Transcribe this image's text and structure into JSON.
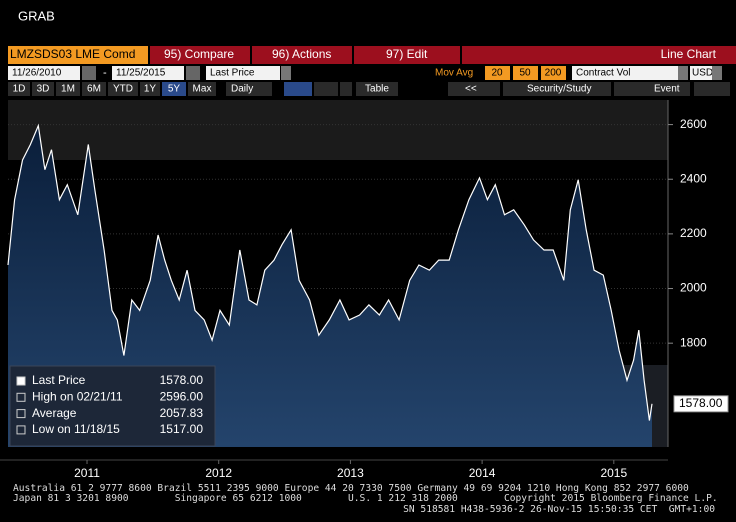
{
  "window_title": "GRAB",
  "toolbar": {
    "ticker": "LMZSDS03 LME Comd",
    "buttons": [
      "95) Compare",
      "96) Actions",
      "97) Edit"
    ],
    "chart_type_label": "Line Chart"
  },
  "settings": {
    "start_date": "11/26/2010",
    "end_date": "11/25/2015",
    "field": "Last Price",
    "mov_avg_label": "Mov Avg",
    "mov_avg": [
      20,
      50,
      200
    ],
    "lower_panel": "Contract Vol",
    "currency": "USD"
  },
  "periods": [
    "1D",
    "3D",
    "1M",
    "6M",
    "YTD",
    "1Y",
    "5Y",
    "Max"
  ],
  "frequency": "Daily",
  "table_button": "Table",
  "back_button": "<<",
  "security_study": "Security/Study",
  "event": "Event",
  "footer": [
    "Australia 61 2 9777 8600 Brazil 5511 2395 9000 Europe 44 20 7330 7500 Germany 49 69 9204 1210 Hong Kong 852 2977 6000",
    "Japan 81 3 3201 8900        Singapore 65 6212 1000        U.S. 1 212 318 2000        Copyright 2015 Bloomberg Finance L.P.",
    "SN 518581 H438-5936-2 26-Nov-15 15:50:35 CET  GMT+1:00"
  ],
  "chart_data": {
    "type": "line",
    "x": [
      2010.9,
      2010.95,
      2011.01,
      2011.07,
      2011.13,
      2011.18,
      2011.23,
      2011.29,
      2011.35,
      2011.43,
      2011.51,
      2011.56,
      2011.63,
      2011.69,
      2011.73,
      2011.78,
      2011.84,
      2011.9,
      2011.98,
      2012.04,
      2012.09,
      2012.14,
      2012.2,
      2012.26,
      2012.32,
      2012.39,
      2012.45,
      2012.51,
      2012.58,
      2012.66,
      2012.73,
      2012.79,
      2012.85,
      2012.92,
      2012.98,
      2013.05,
      2013.11,
      2013.19,
      2013.26,
      2013.34,
      2013.42,
      2013.49,
      2013.57,
      2013.64,
      2013.72,
      2013.79,
      2013.87,
      2013.95,
      2014.02,
      2014.1,
      2014.17,
      2014.25,
      2014.32,
      2014.4,
      2014.48,
      2014.54,
      2014.6,
      2014.67,
      2014.74,
      2014.82,
      2014.89,
      2014.97,
      2015.04,
      2015.12,
      2015.17,
      2015.23,
      2015.29,
      2015.35,
      2015.42,
      2015.48,
      2015.54,
      2015.6,
      2015.65,
      2015.69,
      2015.73,
      2015.77,
      2015.79
    ],
    "series": [
      {
        "name": "Last Price",
        "color": "#ffffff",
        "values": [
          2086,
          2325,
          2470,
          2527,
          2596,
          2435,
          2508,
          2325,
          2380,
          2270,
          2527,
          2360,
          2141,
          1920,
          1885,
          1755,
          1958,
          1920,
          2030,
          2196,
          2104,
          2030,
          1958,
          2067,
          1920,
          1885,
          1811,
          1920,
          1866,
          2141,
          1958,
          1940,
          2067,
          2104,
          2160,
          2215,
          2030,
          1958,
          1829,
          1885,
          1958,
          1885,
          1903,
          1940,
          1903,
          1958,
          1885,
          2030,
          2086,
          2067,
          2104,
          2104,
          2215,
          2325,
          2405,
          2325,
          2380,
          2270,
          2288,
          2233,
          2178,
          2141,
          2141,
          2030,
          2288,
          2398,
          2215,
          2067,
          2049,
          1920,
          1774,
          1664,
          1738,
          1848,
          1664,
          1517,
          1578
        ]
      }
    ],
    "xlim": [
      2010.9,
      2015.79
    ],
    "xticks": [
      {
        "value": 2011.5,
        "label": "2011"
      },
      {
        "value": 2012.5,
        "label": "2012"
      },
      {
        "value": 2013.5,
        "label": "2013"
      },
      {
        "value": 2014.5,
        "label": "2014"
      },
      {
        "value": 2015.5,
        "label": "2015"
      }
    ],
    "ylim": [
      1420,
      2690
    ],
    "yticks": [
      1800,
      2000,
      2200,
      2400,
      2600
    ],
    "grid": true,
    "last_price_label": "1578.00",
    "legend": [
      {
        "label": "Last Price",
        "value_label": "1578.00"
      },
      {
        "label": "High on 02/21/11",
        "value_label": "2596.00"
      },
      {
        "label": "Average",
        "value_label": "2057.83"
      },
      {
        "label": "Low on 11/18/15",
        "value_label": "1517.00"
      }
    ]
  }
}
